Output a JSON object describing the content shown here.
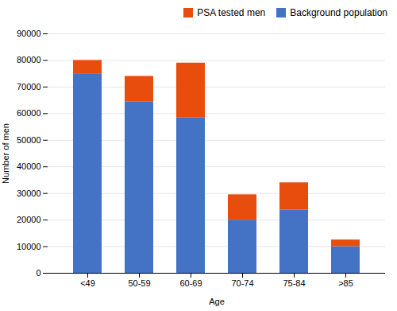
{
  "chart_data": {
    "type": "bar",
    "stacked": true,
    "categories": [
      "<49",
      "50-59",
      "60-69",
      "70-74",
      "75-84",
      ">85"
    ],
    "series": [
      {
        "name": "Background population",
        "color": "#4472C4",
        "values": [
          75000,
          64500,
          58500,
          20000,
          23800,
          10000
        ]
      },
      {
        "name": "PSA tested men",
        "color": "#E84D0E",
        "values": [
          5000,
          9500,
          20500,
          9500,
          10200,
          2500
        ]
      }
    ],
    "xlabel": "Age",
    "ylabel": "Number of men",
    "ylim": [
      0,
      90000
    ],
    "yticks": [
      0,
      10000,
      20000,
      30000,
      40000,
      50000,
      60000,
      70000,
      80000,
      90000
    ],
    "grid": true,
    "legend": "upper right"
  }
}
